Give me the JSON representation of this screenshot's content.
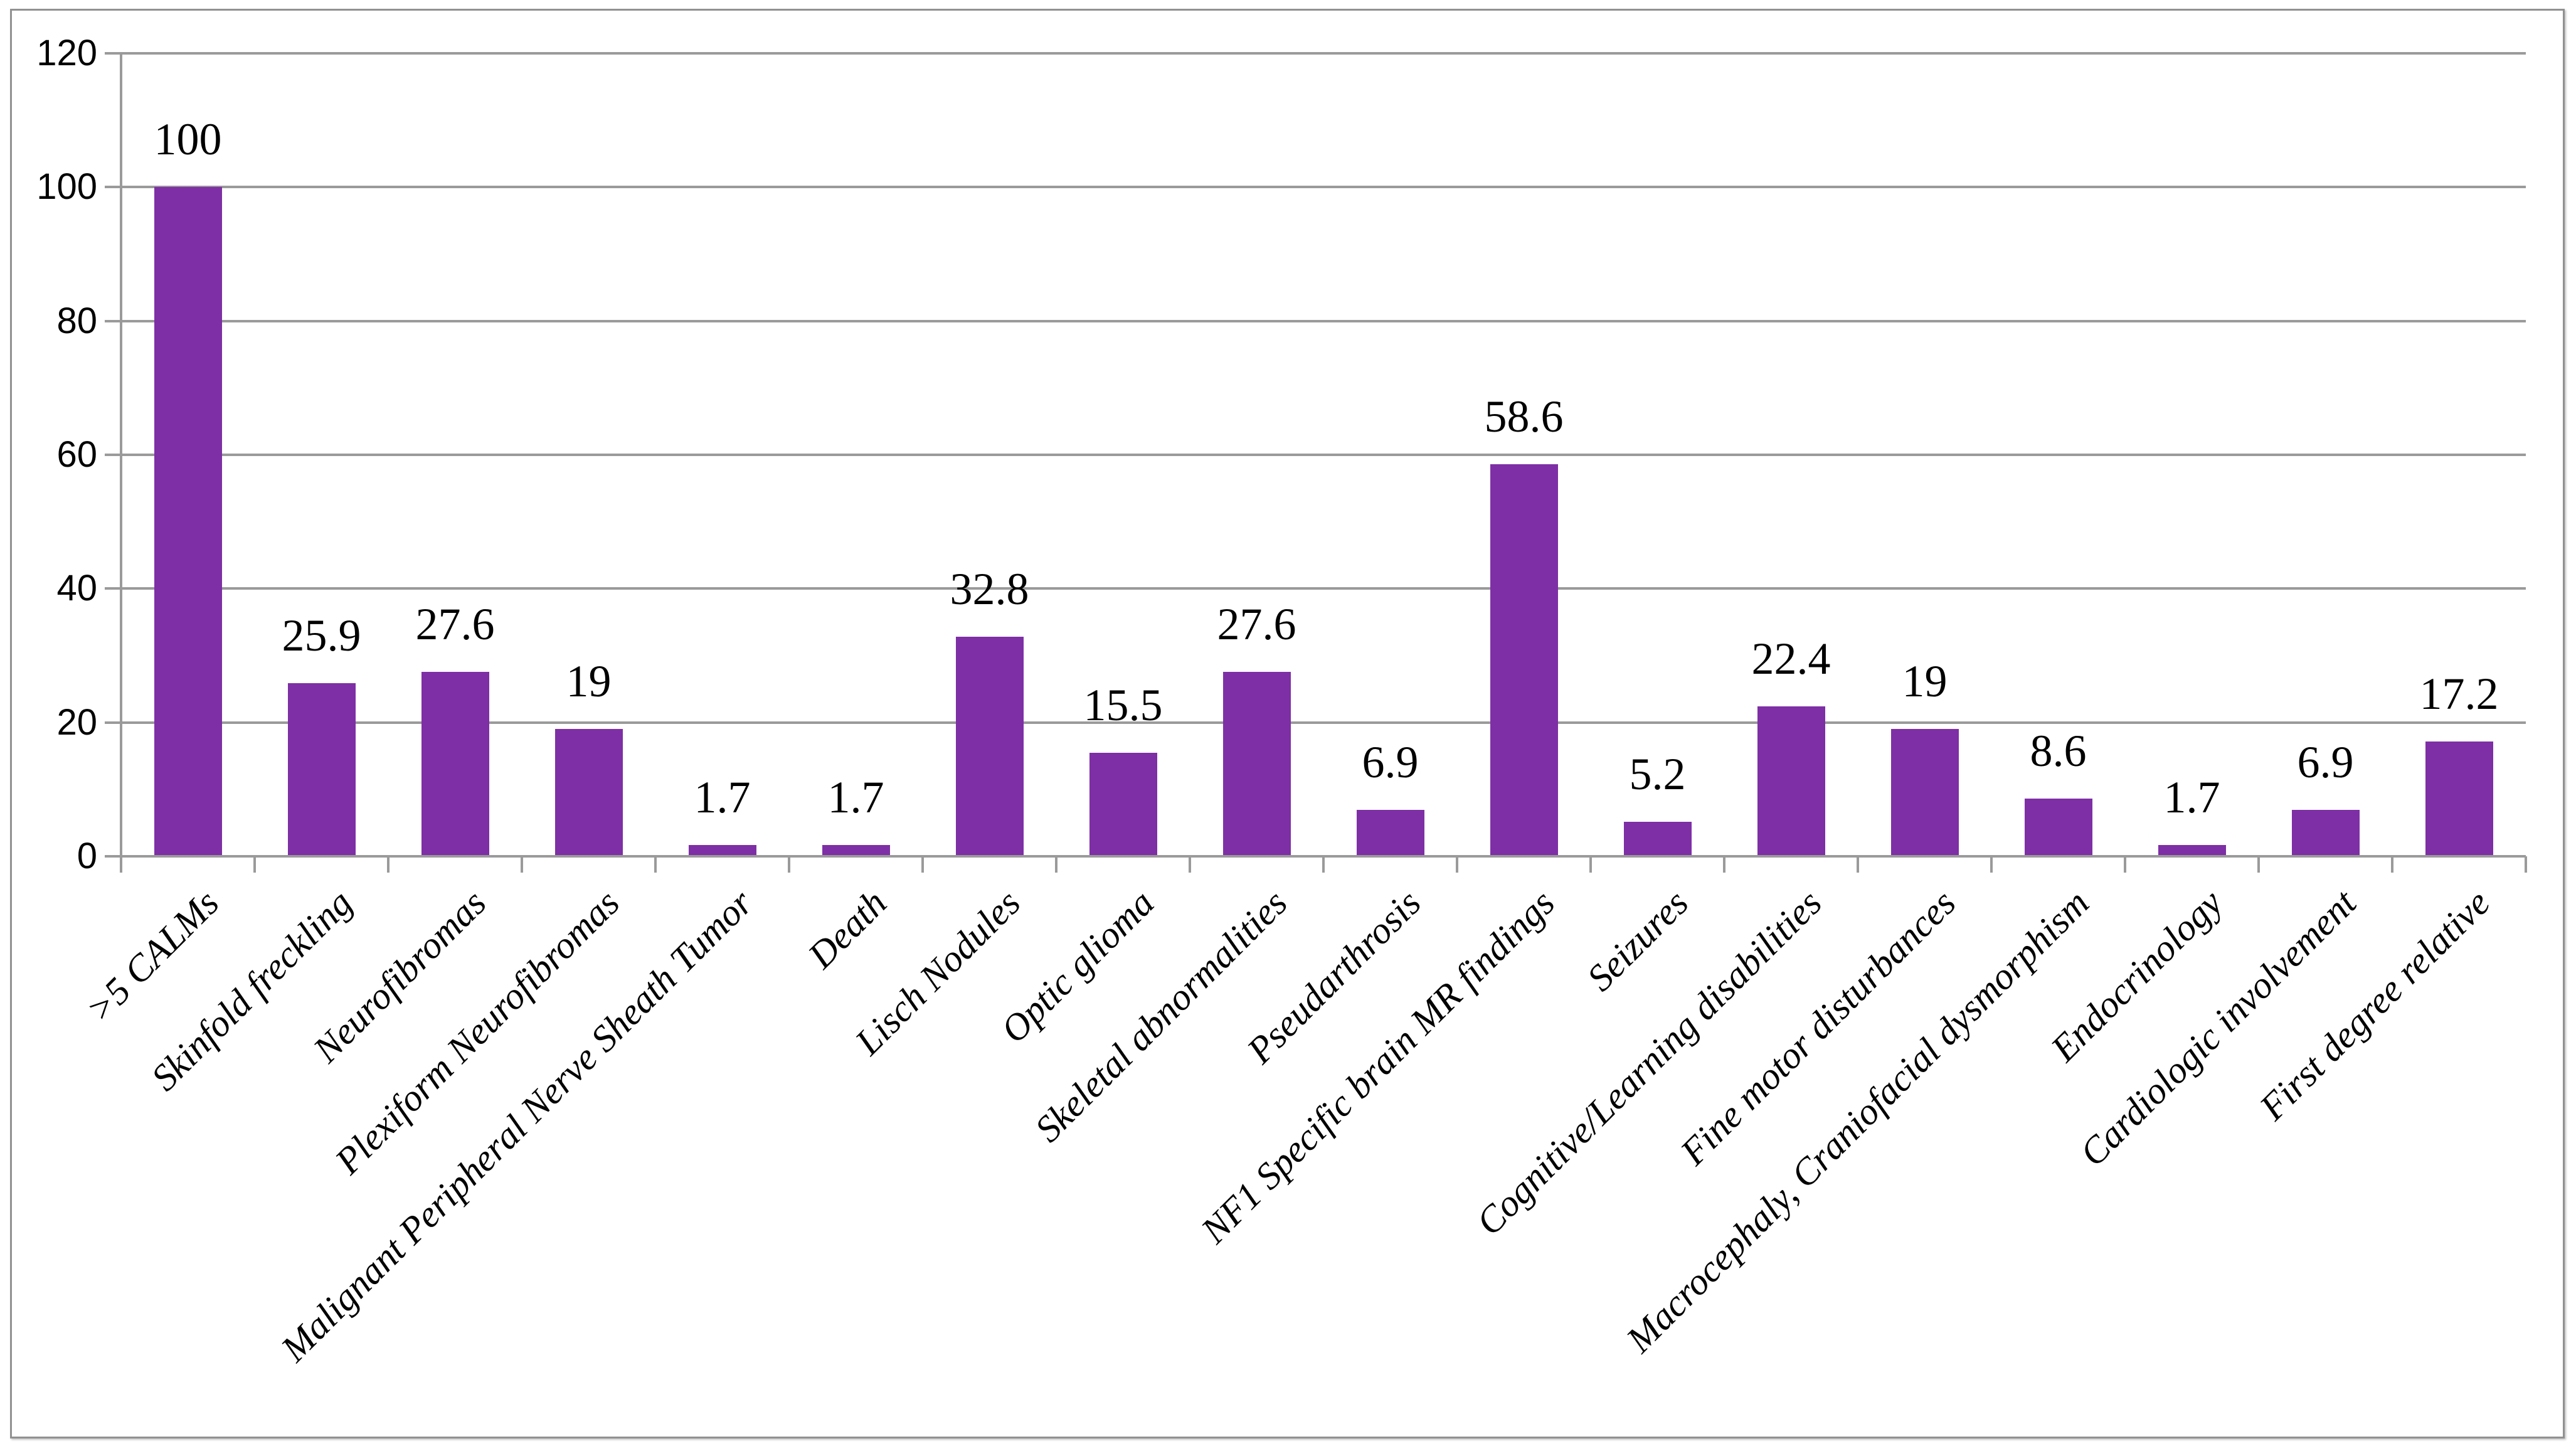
{
  "figure": {
    "title": "",
    "background": "#FFFFFF"
  },
  "colors": {
    "bar": "#7E2FA5",
    "gridline": "#9A9A9A",
    "axis": "#9A9A9A",
    "frame_border": "#919191",
    "text": "#000000",
    "background": "#FFFFFF"
  },
  "chart_data": {
    "type": "bar",
    "title": "",
    "xlabel": "",
    "ylabel": "",
    "categories": [
      ">5 CALMs",
      "Skinfold freckling",
      "Neurofibromas",
      "Plexiform Neurofibromas",
      "Malignant Peripheral Nerve Sheath Tumor",
      "Death",
      "Lisch Nodules",
      "Optic glioma",
      "Skeletal abnormalities",
      "Pseudarthrosis",
      "NF1 Specific brain MR findings",
      "Seizures",
      "Cognitive/Learning disabilities",
      "Fine motor disturbances",
      "Macrocephaly, Craniofacial dysmorphism",
      "Endocrinology",
      "Cardiologic involvement",
      "First degree relative"
    ],
    "values": [
      100,
      25.9,
      27.6,
      19,
      1.7,
      1.7,
      32.8,
      15.5,
      27.6,
      6.9,
      58.6,
      5.2,
      22.4,
      19,
      8.6,
      1.7,
      6.9,
      17.2
    ],
    "value_labels": [
      "100",
      "25.9",
      "27.6",
      "19",
      "1.7",
      "1.7",
      "32.8",
      "15.5",
      "27.6",
      "6.9",
      "58.6",
      "5.2",
      "22.4",
      "19",
      "8.6",
      "1.7",
      "6.9",
      "17.2"
    ],
    "ylim": [
      0,
      120
    ],
    "ytick_interval": 20,
    "yticks": [
      "0",
      "20",
      "40",
      "60",
      "80",
      "100",
      "120"
    ],
    "grid": true,
    "legend": false,
    "bar_color": "#7E2FA5",
    "category_label_rotation_deg": -45
  }
}
